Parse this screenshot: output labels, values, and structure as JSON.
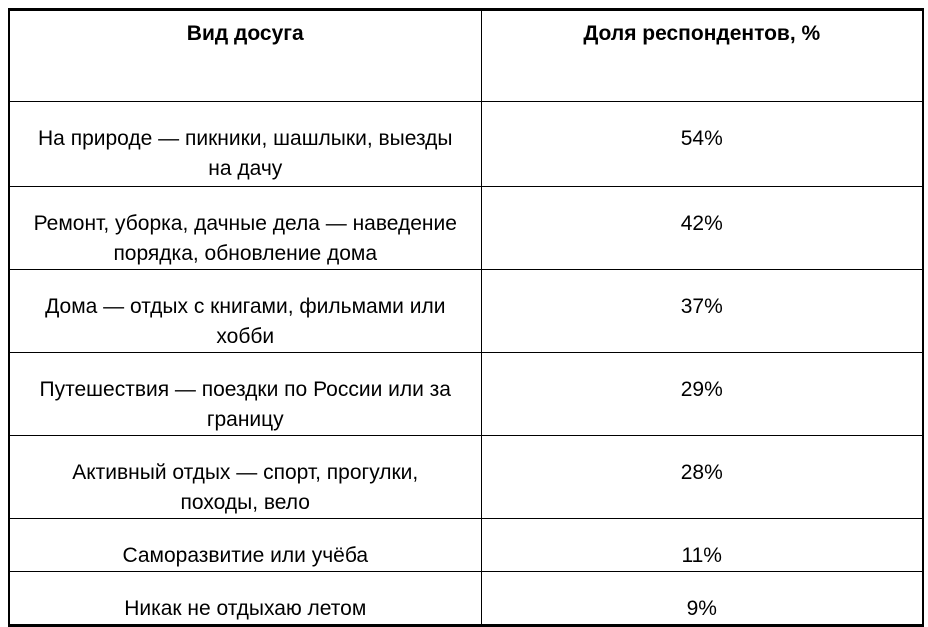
{
  "page": {
    "background_color": "#ffffff",
    "border_color": "#000000",
    "text_color": "#000000"
  },
  "table": {
    "headers": [
      "Вид досуга",
      "Доля респондентов, %"
    ],
    "rows": [
      {
        "leisure": "На природе — пикники, шашлыки, выезды\nна дачу",
        "share": "54%"
      },
      {
        "leisure": "Ремонт, уборка, дачные дела — наведение\nпорядка, обновление дома",
        "share": "42%"
      },
      {
        "leisure": "Дома — отдых с книгами, фильмами или\nхобби",
        "share": "37%"
      },
      {
        "leisure": "Путешествия — поездки по России или за\nграницу",
        "share": "29%"
      },
      {
        "leisure": "Активный отдых — спорт, прогулки,\nпоходы, вело",
        "share": "28%"
      },
      {
        "leisure": "Саморазвитие или учёба",
        "share": "11%"
      },
      {
        "leisure": "Никак не отдыхаю летом",
        "share": "9%"
      }
    ]
  },
  "chart_data": {
    "type": "table",
    "columns": [
      "Вид досуга",
      "Доля респондентов, %"
    ],
    "categories": [
      "На природе — пикники, шашлыки, выезды на дачу",
      "Ремонт, уборка, дачные дела — наведение порядка, обновление дома",
      "Дома — отдых с книгами, фильмами или хобби",
      "Путешествия — поездки по России или за границу",
      "Активный отдых — спорт, прогулки, походы, вело",
      "Саморазвитие или учёба",
      "Никак не отдыхаю летом"
    ],
    "values": [
      54,
      42,
      37,
      29,
      28,
      11,
      9
    ],
    "unit": "%"
  }
}
